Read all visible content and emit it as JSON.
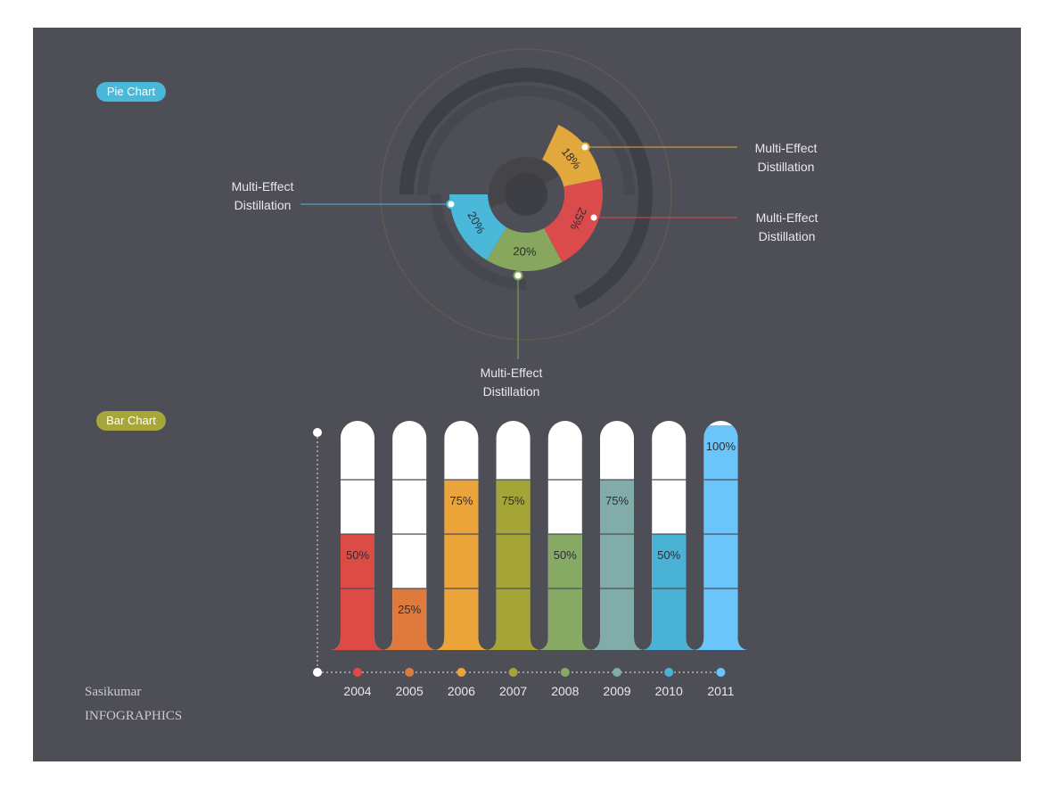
{
  "colors": {
    "background": "#4e4e57",
    "pie_pill": "#4ab8d8",
    "bar_pill": "#a6a63a",
    "tube_empty": "#ffffff"
  },
  "labels": {
    "pie_section": "Pie Chart",
    "bar_section": "Bar Chart"
  },
  "callouts": {
    "left": [
      "Multi-Effect",
      "Distillation"
    ],
    "top_right": [
      "Multi-Effect",
      "Distillation"
    ],
    "right": [
      "Multi-Effect",
      "Distillation"
    ],
    "bottom": [
      "Multi-Effect",
      "Distillation"
    ]
  },
  "footer": {
    "line1": "Sasikumar",
    "line2": "INFOGRAPHICS"
  },
  "chart_data": [
    {
      "type": "pie",
      "slices": [
        {
          "label": "20%",
          "value": 20,
          "color": "#4ab8d8"
        },
        {
          "label": "20%",
          "value": 20,
          "color": "#86a75d"
        },
        {
          "label": "25%",
          "value": 25,
          "color": "#dc4b4b"
        },
        {
          "label": "18%",
          "value": 18,
          "color": "#e3a83c"
        }
      ]
    },
    {
      "type": "bar",
      "categories": [
        "2004",
        "2005",
        "2006",
        "2007",
        "2008",
        "2009",
        "2010",
        "2011"
      ],
      "values": [
        50,
        25,
        75,
        75,
        50,
        75,
        50,
        100
      ],
      "value_labels": [
        "50%",
        "25%",
        "75%",
        "75%",
        "50%",
        "75%",
        "50%",
        "100%"
      ],
      "colors": [
        "#dc4b45",
        "#de7a3c",
        "#eaa43a",
        "#a5a437",
        "#86a964",
        "#82aca9",
        "#4ab3d5",
        "#6bc4fa"
      ],
      "ylim": [
        0,
        100
      ]
    }
  ]
}
